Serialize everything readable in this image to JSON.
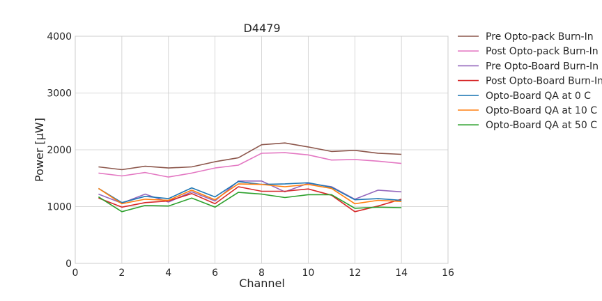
{
  "chart_data": {
    "type": "line",
    "title": "D4479",
    "xlabel": "Channel",
    "ylabel": "Power [μW]",
    "xlim": [
      0,
      16
    ],
    "ylim": [
      0,
      4000
    ],
    "xticks": [
      0,
      2,
      4,
      6,
      8,
      10,
      12,
      14,
      16
    ],
    "yticks": [
      0,
      1000,
      2000,
      3000,
      4000
    ],
    "grid": true,
    "legend_position": "outside-right",
    "x": [
      1,
      2,
      3,
      4,
      5,
      6,
      7,
      8,
      9,
      10,
      11,
      12,
      13,
      14
    ],
    "series": [
      {
        "name": "Pre Opto-pack Burn-In",
        "color": "#8c564b",
        "values": [
          1700,
          1650,
          1710,
          1680,
          1700,
          1790,
          1860,
          2090,
          2120,
          2050,
          1970,
          1990,
          1940,
          1920
        ]
      },
      {
        "name": "Post Opto-pack Burn-In",
        "color": "#e377c2",
        "values": [
          1590,
          1540,
          1600,
          1520,
          1590,
          1680,
          1730,
          1940,
          1950,
          1910,
          1820,
          1830,
          1800,
          1760
        ]
      },
      {
        "name": "Pre Opto-Board Burn-In",
        "color": "#9467bd",
        "values": [
          1220,
          1060,
          1220,
          1080,
          1260,
          1100,
          1450,
          1450,
          1260,
          1410,
          1350,
          1130,
          1290,
          1260
        ]
      },
      {
        "name": "Post Opto-Board Burn-In",
        "color": "#d62728",
        "values": [
          1150,
          990,
          1070,
          1100,
          1230,
          1050,
          1350,
          1270,
          1270,
          1310,
          1200,
          910,
          1010,
          1130
        ]
      },
      {
        "name": "Opto-Board QA at 0 C",
        "color": "#1f77b4",
        "values": [
          1320,
          1070,
          1180,
          1140,
          1330,
          1170,
          1440,
          1390,
          1400,
          1420,
          1340,
          1120,
          1140,
          1110
        ]
      },
      {
        "name": "Opto-Board QA at 10 C",
        "color": "#ff7f0e",
        "values": [
          1320,
          1050,
          1130,
          1110,
          1290,
          1120,
          1400,
          1390,
          1350,
          1390,
          1320,
          1050,
          1110,
          1090
        ]
      },
      {
        "name": "Opto-Board QA at 50 C",
        "color": "#2ca02c",
        "values": [
          1170,
          910,
          1020,
          1010,
          1150,
          990,
          1250,
          1220,
          1160,
          1210,
          1210,
          970,
          990,
          980
        ]
      }
    ]
  }
}
